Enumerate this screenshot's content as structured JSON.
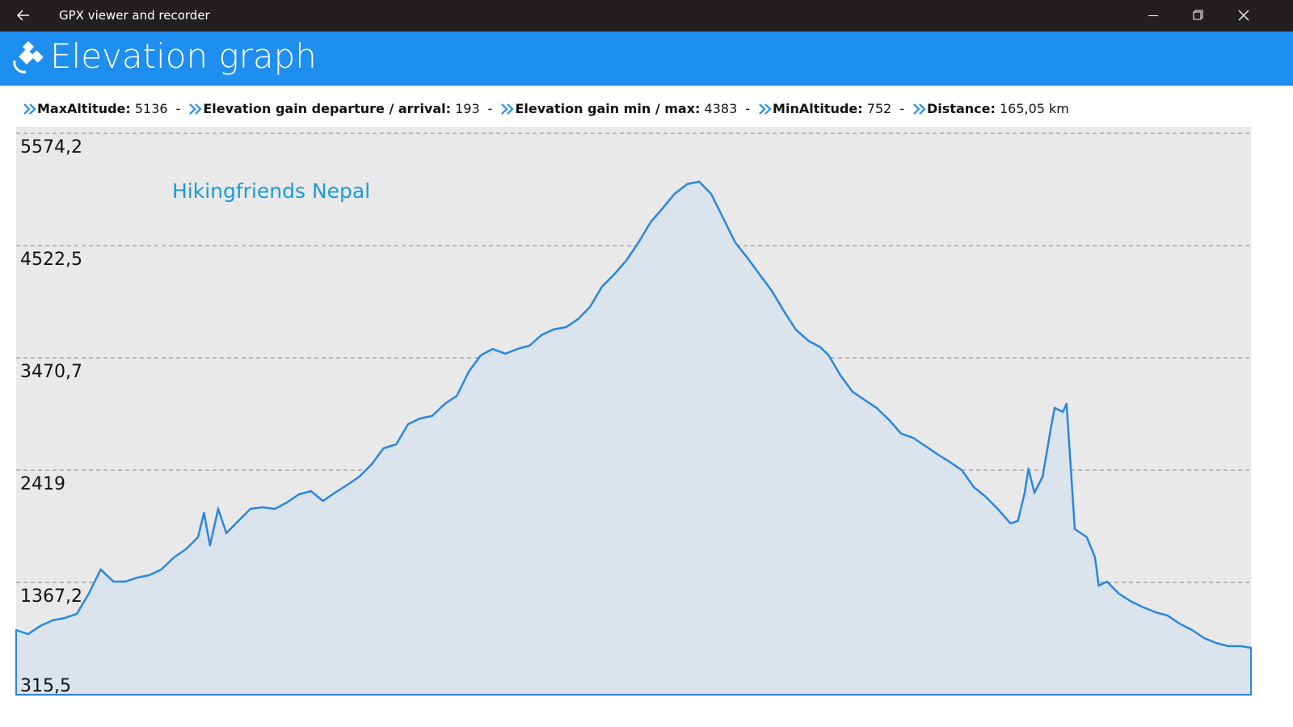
{
  "window": {
    "title": "GPX viewer and recorder"
  },
  "header": {
    "title": "Elevation graph"
  },
  "stats": {
    "separator": "-",
    "items": [
      {
        "label": "MaxAltitude:",
        "value": "5136"
      },
      {
        "label": "Elevation gain departure / arrival:",
        "value": "193"
      },
      {
        "label": "Elevation gain min / max:",
        "value": "4383"
      },
      {
        "label": "MinAltitude:",
        "value": "752"
      },
      {
        "label": "Distance:",
        "value": "165,05 km"
      }
    ]
  },
  "chart_data": {
    "type": "area",
    "annotation": "Hikingfriends Nepal",
    "color": "#2b87dd",
    "area_color": "#dbe3ec",
    "background": "#e9e9e9",
    "grid": true,
    "xlim": [
      0,
      165.05
    ],
    "ylim": [
      315.5,
      5574.2
    ],
    "yticks": [
      {
        "value": 315.5,
        "label": "315,5"
      },
      {
        "value": 1367.2,
        "label": "1367,2"
      },
      2419,
      {
        "value": 3470.7,
        "label": "3470,7"
      },
      {
        "value": 4522.5,
        "label": "4522,5"
      },
      {
        "value": 5574.2,
        "label": "5574,2"
      }
    ],
    "x": [
      0,
      1.6,
      3.2,
      4.9,
      6.5,
      8.1,
      9.7,
      11.3,
      13.0,
      14.6,
      16.2,
      17.8,
      19.4,
      21.1,
      22.7,
      24.3,
      25.1,
      25.9,
      27.0,
      28.1,
      29.7,
      31.3,
      32.9,
      34.6,
      36.2,
      37.8,
      39.4,
      41.0,
      42.6,
      44.3,
      45.9,
      47.5,
      49.1,
      50.8,
      52.4,
      54.0,
      55.6,
      57.3,
      58.9,
      60.5,
      62.1,
      63.7,
      65.4,
      67.0,
      68.6,
      70.2,
      71.8,
      73.5,
      75.1,
      76.7,
      78.3,
      79.9,
      81.6,
      83.2,
      84.8,
      86.4,
      88.0,
      89.7,
      91.3,
      92.9,
      94.5,
      96.1,
      97.8,
      99.4,
      101.0,
      102.6,
      104.2,
      105.9,
      107.5,
      108.6,
      110.2,
      111.8,
      113.4,
      115.0,
      116.7,
      118.3,
      119.9,
      121.5,
      123.1,
      124.8,
      126.4,
      128.0,
      129.6,
      131.2,
      132.9,
      133.9,
      134.8,
      135.3,
      136.1,
      137.2,
      138.3,
      138.8,
      139.9,
      140.4,
      141.5,
      143.1,
      144.2,
      144.7,
      145.8,
      147.4,
      149.1,
      150.7,
      152.3,
      153.9,
      155.5,
      157.2,
      158.8,
      160.4,
      162.0,
      163.7,
      165.05
    ],
    "values": [
      921,
      883,
      959,
      1012,
      1034,
      1072,
      1261,
      1488,
      1375,
      1375,
      1413,
      1435,
      1488,
      1602,
      1678,
      1791,
      2018,
      1715,
      2056,
      1829,
      1943,
      2056,
      2071,
      2056,
      2116,
      2192,
      2222,
      2131,
      2207,
      2283,
      2359,
      2472,
      2623,
      2661,
      2850,
      2903,
      2926,
      3040,
      3115,
      3342,
      3494,
      3554,
      3509,
      3554,
      3584,
      3683,
      3736,
      3758,
      3834,
      3948,
      4137,
      4250,
      4386,
      4553,
      4742,
      4871,
      5007,
      5098,
      5121,
      5007,
      4780,
      4553,
      4402,
      4250,
      4099,
      3910,
      3736,
      3630,
      3570,
      3494,
      3304,
      3153,
      3077,
      3002,
      2888,
      2760,
      2722,
      2646,
      2570,
      2495,
      2419,
      2260,
      2169,
      2056,
      1920,
      1943,
      2207,
      2434,
      2207,
      2359,
      2813,
      3002,
      2964,
      3040,
      1867,
      1791,
      1602,
      1337,
      1375,
      1261,
      1186,
      1133,
      1087,
      1057,
      981,
      921,
      845,
      800,
      770,
      770,
      754
    ]
  }
}
